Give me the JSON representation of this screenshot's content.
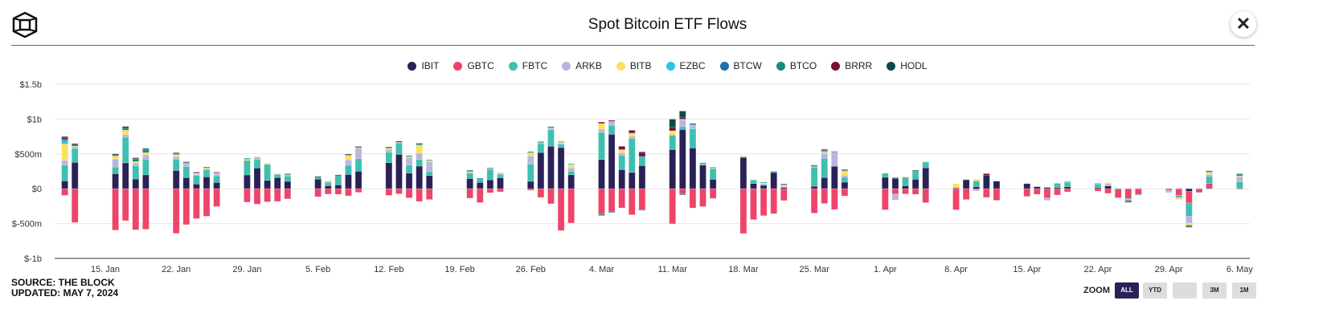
{
  "header": {
    "title": "Spot Bitcoin ETF Flows",
    "close_icon": "close-icon",
    "logo": "the-block-cube-logo"
  },
  "footer": {
    "source": "SOURCE: THE BLOCK",
    "updated": "UPDATED: MAY 7, 2024"
  },
  "zoom": {
    "label": "ZOOM",
    "buttons": [
      "ALL",
      "YTD",
      "",
      "3M",
      "1M"
    ],
    "active": "ALL"
  },
  "chart_data": {
    "type": "bar",
    "stacked": true,
    "title": "Spot Bitcoin ETF Flows",
    "xlabel": "",
    "ylabel": "",
    "unit": "$m",
    "ylim": [
      -1000,
      1500
    ],
    "y_ticks": [
      {
        "v": 1500,
        "label": "$1.5b"
      },
      {
        "v": 1000,
        "label": "$1b"
      },
      {
        "v": 500,
        "label": "$500m"
      },
      {
        "v": 0,
        "label": "$0"
      },
      {
        "v": -500,
        "label": "$-500m"
      },
      {
        "v": -1000,
        "label": "$-1b"
      }
    ],
    "x_ticks": [
      {
        "d": "2024-01-15",
        "label": "15. Jan"
      },
      {
        "d": "2024-01-22",
        "label": "22. Jan"
      },
      {
        "d": "2024-01-29",
        "label": "29. Jan"
      },
      {
        "d": "2024-02-05",
        "label": "5. Feb"
      },
      {
        "d": "2024-02-12",
        "label": "12. Feb"
      },
      {
        "d": "2024-02-19",
        "label": "19. Feb"
      },
      {
        "d": "2024-02-26",
        "label": "26. Feb"
      },
      {
        "d": "2024-03-04",
        "label": "4. Mar"
      },
      {
        "d": "2024-03-11",
        "label": "11. Mar"
      },
      {
        "d": "2024-03-18",
        "label": "18. Mar"
      },
      {
        "d": "2024-03-25",
        "label": "25. Mar"
      },
      {
        "d": "2024-04-01",
        "label": "1. Apr"
      },
      {
        "d": "2024-04-08",
        "label": "8. Apr"
      },
      {
        "d": "2024-04-15",
        "label": "15. Apr"
      },
      {
        "d": "2024-04-22",
        "label": "22. Apr"
      },
      {
        "d": "2024-04-29",
        "label": "29. Apr"
      },
      {
        "d": "2024-05-06",
        "label": "6. May"
      }
    ],
    "xlim": [
      "2024-01-10",
      "2024-05-07"
    ],
    "grid": true,
    "legend_position": "top",
    "series_names": [
      "IBIT",
      "GBTC",
      "FBTC",
      "ARKB",
      "BITB",
      "EZBC",
      "BTCW",
      "BTCO",
      "BRRR",
      "HODL"
    ],
    "colors": [
      "#2a2158",
      "#ee4469",
      "#3fbfb0",
      "#b9b4e0",
      "#fde05c",
      "#29c4e8",
      "#1f6fa8",
      "#178c78",
      "#7a0e3a",
      "#0d4a4a"
    ],
    "days": [
      {
        "d": "2024-01-11",
        "v": [
          112,
          -95,
          227,
          65,
          238,
          50,
          1,
          17,
          29,
          11
        ]
      },
      {
        "d": "2024-01-12",
        "v": [
          378,
          -484,
          200,
          30,
          5,
          0,
          0,
          10,
          5,
          20
        ]
      },
      {
        "d": "2024-01-16",
        "v": [
          216,
          -594,
          95,
          115,
          45,
          0,
          0,
          10,
          5,
          15
        ]
      },
      {
        "d": "2024-01-17",
        "v": [
          372,
          -458,
          367,
          38,
          64,
          0,
          0,
          28,
          0,
          25
        ]
      },
      {
        "d": "2024-01-18",
        "v": [
          140,
          -590,
          190,
          40,
          20,
          0,
          0,
          35,
          10,
          10
        ]
      },
      {
        "d": "2024-01-19",
        "v": [
          200,
          -582,
          225,
          60,
          33,
          0,
          0,
          45,
          0,
          15
        ]
      },
      {
        "d": "2024-01-22",
        "v": [
          262,
          -640,
          160,
          35,
          35,
          0,
          0,
          10,
          0,
          15
        ]
      },
      {
        "d": "2024-01-23",
        "v": [
          160,
          -515,
          157,
          45,
          10,
          0,
          0,
          5,
          0,
          10
        ]
      },
      {
        "d": "2024-01-24",
        "v": [
          67,
          -429,
          126,
          15,
          15,
          0,
          0,
          10,
          5,
          0
        ]
      },
      {
        "d": "2024-01-25",
        "v": [
          171,
          -394,
          104,
          10,
          15,
          0,
          0,
          0,
          10,
          0
        ]
      },
      {
        "d": "2024-01-26",
        "v": [
          89,
          -255,
          96,
          35,
          10,
          0,
          0,
          0,
          8,
          0
        ]
      },
      {
        "d": "2024-01-29",
        "v": [
          198,
          -192,
          209,
          0,
          15,
          0,
          0,
          15,
          0,
          0
        ]
      },
      {
        "d": "2024-01-30",
        "v": [
          298,
          -221,
          120,
          35,
          10,
          0,
          0,
          0,
          0,
          0
        ]
      },
      {
        "d": "2024-01-31",
        "v": [
          120,
          -188,
          230,
          0,
          20,
          0,
          0,
          0,
          0,
          0
        ]
      },
      {
        "d": "2024-02-01",
        "v": [
          160,
          -182,
          45,
          10,
          0,
          0,
          0,
          0,
          0,
          0
        ]
      },
      {
        "d": "2024-02-02",
        "v": [
          107,
          -145,
          75,
          20,
          0,
          0,
          0,
          15,
          0,
          0
        ]
      },
      {
        "d": "2024-02-05",
        "v": [
          138,
          -115,
          35,
          0,
          0,
          0,
          0,
          0,
          0,
          5
        ]
      },
      {
        "d": "2024-02-06",
        "v": [
          42,
          -77,
          45,
          0,
          10,
          0,
          0,
          5,
          0,
          0
        ]
      },
      {
        "d": "2024-02-07",
        "v": [
          55,
          -80,
          125,
          0,
          0,
          0,
          0,
          10,
          0,
          10
        ]
      },
      {
        "d": "2024-02-08",
        "v": [
          205,
          -102,
          133,
          75,
          65,
          0,
          0,
          10,
          0,
          10
        ]
      },
      {
        "d": "2024-02-09",
        "v": [
          250,
          -52,
          180,
          145,
          10,
          0,
          0,
          12,
          0,
          10
        ]
      },
      {
        "d": "2024-02-12",
        "v": [
          374,
          -95,
          150,
          40,
          20,
          0,
          0,
          0,
          0,
          15
        ]
      },
      {
        "d": "2024-02-13",
        "v": [
          493,
          -73,
          165,
          10,
          0,
          0,
          0,
          0,
          0,
          15
        ]
      },
      {
        "d": "2024-02-14",
        "v": [
          224,
          -131,
          116,
          105,
          15,
          0,
          0,
          15,
          0,
          0
        ]
      },
      {
        "d": "2024-02-15",
        "v": [
          325,
          -182,
          95,
          88,
          120,
          0,
          0,
          10,
          0,
          15
        ]
      },
      {
        "d": "2024-02-16",
        "v": [
          190,
          -155,
          55,
          146,
          15,
          0,
          0,
          10,
          0,
          0
        ]
      },
      {
        "d": "2024-02-20",
        "v": [
          146,
          -135,
          80,
          10,
          10,
          0,
          0,
          20,
          0,
          0
        ]
      },
      {
        "d": "2024-02-21",
        "v": [
          91,
          -199,
          58,
          0,
          0,
          0,
          0,
          5,
          0,
          0
        ]
      },
      {
        "d": "2024-02-22",
        "v": [
          128,
          -58,
          153,
          10,
          0,
          0,
          0,
          10,
          0,
          0
        ]
      },
      {
        "d": "2024-02-23",
        "v": [
          157,
          -44,
          51,
          15,
          10,
          0,
          0,
          0,
          0,
          0
        ]
      },
      {
        "d": "2024-02-26",
        "v": [
          106,
          -22,
          248,
          117,
          47,
          0,
          0,
          15,
          0,
          0
        ]
      },
      {
        "d": "2024-02-27",
        "v": [
          520,
          -125,
          128,
          15,
          0,
          0,
          0,
          15,
          0,
          0
        ]
      },
      {
        "d": "2024-02-28",
        "v": [
          610,
          -216,
          237,
          30,
          0,
          0,
          0,
          15,
          0,
          0
        ]
      },
      {
        "d": "2024-02-29",
        "v": [
          591,
          -600,
          47,
          15,
          15,
          0,
          0,
          10,
          0,
          0
        ]
      },
      {
        "d": "2024-03-01",
        "v": [
          200,
          -492,
          51,
          47,
          47,
          15,
          0,
          0,
          0,
          0
        ]
      },
      {
        "d": "2024-03-04",
        "v": [
          420,
          -365,
          390,
          47,
          80,
          0,
          0,
          -20,
          20,
          0
        ]
      },
      {
        "d": "2024-03-05",
        "v": [
          781,
          -332,
          131,
          55,
          0,
          0,
          0,
          -10,
          15,
          0
        ]
      },
      {
        "d": "2024-03-06",
        "v": [
          274,
          -275,
          208,
          36,
          44,
          0,
          0,
          0,
          47,
          0
        ]
      },
      {
        "d": "2024-03-07",
        "v": [
          234,
          -374,
          485,
          36,
          44,
          0,
          0,
          0,
          40,
          0
        ]
      },
      {
        "d": "2024-03-08",
        "v": [
          332,
          -300,
          131,
          0,
          0,
          0,
          0,
          -10,
          58,
          10
        ]
      },
      {
        "d": "2024-03-11",
        "v": [
          562,
          -494,
          208,
          0,
          62,
          0,
          0,
          -10,
          47,
          120
        ]
      },
      {
        "d": "2024-03-12",
        "v": [
          849,
          -79,
          44,
          95,
          10,
          0,
          0,
          -10,
          29,
          88
        ]
      },
      {
        "d": "2024-03-13",
        "v": [
          586,
          -276,
          274,
          51,
          0,
          10,
          0,
          0,
          0,
          15
        ]
      },
      {
        "d": "2024-03-14",
        "v": [
          343,
          -257,
          5,
          0,
          0,
          10,
          0,
          0,
          0,
          10
        ]
      },
      {
        "d": "2024-03-15",
        "v": [
          135,
          -139,
          153,
          0,
          10,
          0,
          0,
          10,
          0,
          0
        ]
      },
      {
        "d": "2024-03-18",
        "v": [
          451,
          -643,
          10,
          0,
          10,
          0,
          0,
          0,
          0,
          0
        ]
      },
      {
        "d": "2024-03-19",
        "v": [
          75,
          -443,
          51,
          0,
          0,
          0,
          0,
          0,
          0,
          0
        ]
      },
      {
        "d": "2024-03-20",
        "v": [
          49,
          -386,
          12,
          15,
          10,
          0,
          0,
          10,
          0,
          0
        ]
      },
      {
        "d": "2024-03-21",
        "v": [
          233,
          -358,
          20,
          0,
          0,
          0,
          0,
          0,
          0,
          0
        ]
      },
      {
        "d": "2024-03-22",
        "v": [
          18,
          -169,
          10,
          10,
          10,
          10,
          0,
          0,
          10,
          0
        ]
      },
      {
        "d": "2024-03-25",
        "v": [
          35,
          -350,
          274,
          0,
          10,
          0,
          0,
          10,
          0,
          10
        ]
      },
      {
        "d": "2024-03-26",
        "v": [
          161,
          -212,
          274,
          73,
          15,
          15,
          0,
          10,
          10,
          10
        ]
      },
      {
        "d": "2024-03-27",
        "v": [
          323,
          -299,
          0,
          204,
          0,
          0,
          0,
          10,
          0,
          0
        ]
      },
      {
        "d": "2024-03-28",
        "v": [
          95,
          -104,
          69,
          29,
          62,
          0,
          0,
          10,
          10,
          0
        ]
      },
      {
        "d": "2024-04-01",
        "v": [
          165,
          -302,
          58,
          0,
          0,
          0,
          0,
          0,
          0,
          0
        ]
      },
      {
        "d": "2024-04-02",
        "v": [
          150,
          -76,
          15,
          -87,
          0,
          0,
          0,
          0,
          0,
          0
        ]
      },
      {
        "d": "2024-04-03",
        "v": [
          42,
          -75,
          124,
          0,
          10,
          0,
          0,
          0,
          0,
          0
        ]
      },
      {
        "d": "2024-04-04",
        "v": [
          135,
          -80,
          110,
          0,
          0,
          0,
          0,
          10,
          0,
          10
        ]
      },
      {
        "d": "2024-04-05",
        "v": [
          300,
          -200,
          84,
          0,
          10,
          0,
          0,
          0,
          0,
          0
        ]
      },
      {
        "d": "2024-04-08",
        "v": [
          10,
          -303,
          10,
          0,
          52,
          0,
          0,
          0,
          0,
          0
        ]
      },
      {
        "d": "2024-04-09",
        "v": [
          130,
          -155,
          0,
          0,
          10,
          0,
          0,
          0,
          0,
          0
        ]
      },
      {
        "d": "2024-04-10",
        "v": [
          29,
          -18,
          83,
          -10,
          25,
          0,
          0,
          0,
          0,
          0
        ]
      },
      {
        "d": "2024-04-11",
        "v": [
          192,
          -124,
          0,
          0,
          0,
          0,
          0,
          0,
          25,
          0
        ]
      },
      {
        "d": "2024-04-12",
        "v": [
          109,
          -166,
          0,
          0,
          0,
          0,
          0,
          0,
          0,
          0
        ]
      },
      {
        "d": "2024-04-15",
        "v": [
          73,
          -110,
          0,
          0,
          0,
          0,
          0,
          0,
          0,
          0
        ]
      },
      {
        "d": "2024-04-16",
        "v": [
          29,
          -80,
          0,
          0,
          0,
          0,
          0,
          0,
          0,
          0
        ]
      },
      {
        "d": "2024-04-17",
        "v": [
          18,
          -133,
          0,
          -35,
          0,
          0,
          0,
          0,
          0,
          0
        ]
      },
      {
        "d": "2024-04-18",
        "v": [
          18,
          -90,
          43,
          0,
          0,
          0,
          0,
          15,
          0,
          0
        ]
      },
      {
        "d": "2024-04-19",
        "v": [
          29,
          -45,
          62,
          0,
          0,
          15,
          0,
          0,
          0,
          0
        ]
      },
      {
        "d": "2024-04-22",
        "v": [
          15,
          -35,
          50,
          0,
          0,
          15,
          0,
          0,
          0,
          0
        ]
      },
      {
        "d": "2024-04-23",
        "v": [
          40,
          -66,
          0,
          33,
          15,
          0,
          0,
          0,
          0,
          0
        ]
      },
      {
        "d": "2024-04-24",
        "v": [
          0,
          -130,
          5,
          0,
          0,
          0,
          0,
          0,
          0,
          0
        ]
      },
      {
        "d": "2024-04-25",
        "v": [
          0,
          -139,
          -15,
          -10,
          0,
          0,
          0,
          -10,
          -10,
          -5
        ]
      },
      {
        "d": "2024-04-26",
        "v": [
          0,
          -82,
          -10,
          10,
          0,
          0,
          0,
          0,
          0,
          0
        ]
      },
      {
        "d": "2024-04-29",
        "v": [
          0,
          -24,
          0,
          -31,
          10,
          0,
          0,
          0,
          0,
          0
        ]
      },
      {
        "d": "2024-04-30",
        "v": [
          0,
          -93,
          -36,
          10,
          -25,
          0,
          0,
          0,
          0,
          0
        ]
      },
      {
        "d": "2024-05-01",
        "v": [
          -37,
          -167,
          -191,
          -98,
          -30,
          0,
          0,
          -20,
          0,
          -10
        ]
      },
      {
        "d": "2024-05-02",
        "v": [
          0,
          -54,
          5,
          0,
          0,
          0,
          0,
          0,
          0,
          0
        ]
      },
      {
        "d": "2024-05-03",
        "v": [
          12,
          63,
          103,
          28,
          33,
          0,
          0,
          10,
          0,
          8
        ]
      },
      {
        "d": "2024-05-06",
        "v": [
          0,
          4,
          99,
          75,
          7,
          0,
          0,
          20,
          0,
          10
        ]
      }
    ]
  }
}
